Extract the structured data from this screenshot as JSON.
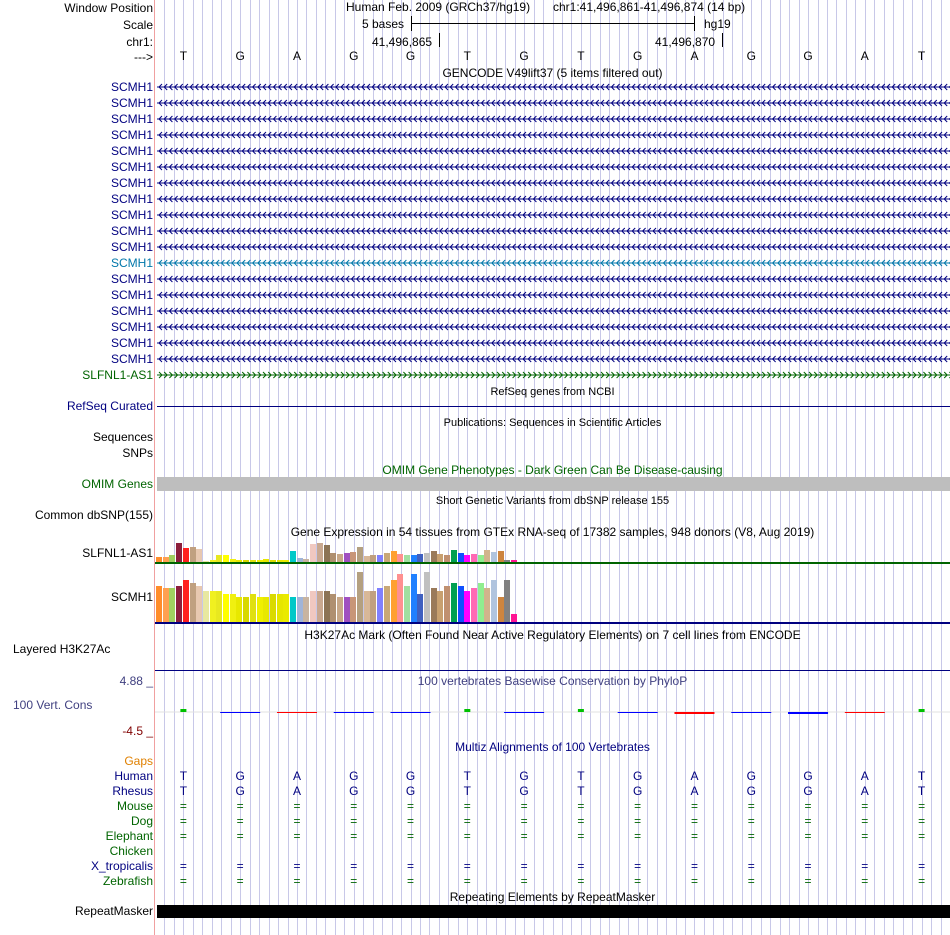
{
  "colors": {
    "label_blue": "#000080",
    "label_green": "#006400",
    "teal": "#0077aa",
    "orange": "#e08000",
    "phylop": "#404080",
    "grid": "#c8c8e8",
    "divider": "#f0a0a0"
  },
  "header": {
    "window_position_label": "Window Position",
    "scale_label": "Scale",
    "chrom_label": "chr1:",
    "strand_label": "--->",
    "assembly": "Human Feb. 2009 (GRCh37/hg19)",
    "position": "chr1:41,496,861-41,496,874 (14 bp)",
    "scale_text": "5 bases",
    "scale_db": "hg19",
    "coord1": "41,496,865",
    "coord2": "41,496,870"
  },
  "bases": [
    "T",
    "G",
    "A",
    "G",
    "G",
    "T",
    "G",
    "T",
    "G",
    "A",
    "G",
    "G",
    "A",
    "T"
  ],
  "gencode": {
    "title": "GENCODE V49lift37 (5 items filtered out)",
    "items": [
      {
        "name": "SCMH1",
        "kind": "blue"
      },
      {
        "name": "SCMH1",
        "kind": "blue"
      },
      {
        "name": "SCMH1",
        "kind": "blue"
      },
      {
        "name": "SCMH1",
        "kind": "blue"
      },
      {
        "name": "SCMH1",
        "kind": "blue"
      },
      {
        "name": "SCMH1",
        "kind": "blue"
      },
      {
        "name": "SCMH1",
        "kind": "blue"
      },
      {
        "name": "SCMH1",
        "kind": "blue"
      },
      {
        "name": "SCMH1",
        "kind": "blue"
      },
      {
        "name": "SCMH1",
        "kind": "blue"
      },
      {
        "name": "SCMH1",
        "kind": "blue"
      },
      {
        "name": "SCMH1",
        "kind": "teal"
      },
      {
        "name": "SCMH1",
        "kind": "blue"
      },
      {
        "name": "SCMH1",
        "kind": "blue"
      },
      {
        "name": "SCMH1",
        "kind": "blue"
      },
      {
        "name": "SCMH1",
        "kind": "blue"
      },
      {
        "name": "SCMH1",
        "kind": "blue"
      },
      {
        "name": "SCMH1",
        "kind": "blue"
      },
      {
        "name": "SLFNL1-AS1",
        "kind": "green"
      }
    ]
  },
  "refseq": {
    "title": "RefSeq genes from NCBI",
    "label": "RefSeq Curated"
  },
  "publications": {
    "title": "Publications: Sequences in Scientific Articles",
    "label1": "Sequences",
    "label2": "SNPs"
  },
  "omim": {
    "title": "OMIM Gene Phenotypes - Dark Green Can Be Disease-causing",
    "label": "OMIM Genes"
  },
  "dbsnp": {
    "title": "Short Genetic Variants from dbSNP release 155",
    "label": "Common dbSNP(155)"
  },
  "gtex": {
    "title": "Gene Expression in 54 tissues from GTEx RNA-seq of 17382 samples, 948 donors (V8, Aug 2019)",
    "genes": [
      {
        "name": "SLFNL1-AS1",
        "values": [
          0.22,
          0.22,
          0.3,
          0.85,
          0.65,
          0.7,
          0.6,
          0.05,
          0.1,
          0.3,
          0.3,
          0.15,
          0.1,
          0.1,
          0.1,
          0.1,
          0.12,
          0.1,
          0.1,
          0.1,
          0.5,
          0.2,
          0.12,
          0.8,
          0.85,
          0.75,
          0.4,
          0.35,
          0.4,
          0.45,
          0.7,
          0.25,
          0.3,
          0.3,
          0.4,
          0.5,
          0.35,
          0.3,
          0.3,
          0.35,
          0.4,
          0.5,
          0.35,
          0.3,
          0.55,
          0.4,
          0.3,
          0.35,
          0.3,
          0.55,
          0.45,
          0.5,
          0.1,
          0.1
        ]
      },
      {
        "name": "SCMH1",
        "values": [
          0.65,
          0.6,
          0.6,
          0.65,
          0.75,
          0.7,
          0.65,
          0.55,
          0.55,
          0.55,
          0.5,
          0.5,
          0.45,
          0.45,
          0.5,
          0.45,
          0.45,
          0.5,
          0.5,
          0.5,
          0.45,
          0.45,
          0.45,
          0.55,
          0.55,
          0.55,
          0.5,
          0.45,
          0.45,
          0.45,
          0.9,
          0.55,
          0.55,
          0.6,
          0.65,
          0.75,
          0.85,
          0.65,
          0.85,
          0.5,
          0.9,
          0.6,
          0.55,
          0.65,
          0.7,
          0.65,
          0.55,
          0.6,
          0.7,
          0.6,
          0.75,
          0.45,
          0.75,
          0.15
        ]
      }
    ]
  },
  "h3k27ac": {
    "title": "H3K27Ac Mark (Often Found Near Active Regulatory Elements) on 7 cell lines from ENCODE",
    "label": "Layered H3K27Ac"
  },
  "phylop": {
    "title": "100 vertebrates Basewise Conservation by PhyloP",
    "label": "100 Vert. Cons",
    "max": "4.88 _",
    "min": "-4.5 _",
    "scores": [
      0.9,
      -0.3,
      -0.4,
      -0.3,
      -0.2,
      0.9,
      -0.2,
      0.9,
      -0.3,
      -0.5,
      -0.3,
      -0.6,
      -0.4,
      0.9
    ],
    "colors": [
      "#00c000",
      "#0000ff",
      "#ff0000",
      "#0000ff",
      "#0000ff",
      "#00c000",
      "#0000ff",
      "#00c000",
      "#0000ff",
      "#ff0000",
      "#0000ff",
      "#0000ff",
      "#ff0000",
      "#00c000"
    ]
  },
  "multiz": {
    "title": "Multiz Alignments of 100 Vertebrates",
    "gaps_label": "Gaps",
    "species": [
      {
        "name": "Human",
        "row": "TGAGGTGTGAGGAT",
        "kind": "blue"
      },
      {
        "name": "Rhesus",
        "row": "TGAGGTGTGAGGAT",
        "kind": "blue"
      },
      {
        "name": "Mouse",
        "row": "==============",
        "kind": "green"
      },
      {
        "name": "Dog",
        "row": "==============",
        "kind": "green"
      },
      {
        "name": "Elephant",
        "row": "==============",
        "kind": "green"
      },
      {
        "name": "Chicken",
        "row": "",
        "kind": "green"
      },
      {
        "name": "X_tropicalis",
        "row": "==============",
        "kind": "blue"
      },
      {
        "name": "Zebrafish",
        "row": "==============",
        "kind": "green"
      }
    ]
  },
  "repeatmasker": {
    "title": "Repeating Elements by RepeatMasker",
    "label": "RepeatMasker"
  }
}
